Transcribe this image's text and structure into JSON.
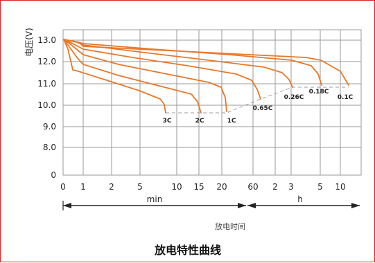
{
  "chart_data": {
    "type": "line",
    "title": "放电特性曲线",
    "ylabel": "电压(V)",
    "xlabel": "放电时间",
    "y_ticks": [
      "0",
      "8.0",
      "9.0",
      "10.0",
      "11.0",
      "12.0",
      "13.0"
    ],
    "x_ticks": [
      "0",
      "1",
      "2",
      "5",
      "10",
      "15",
      "20",
      "60",
      "2",
      "3",
      "5",
      "10"
    ],
    "x_units": [
      {
        "name": "min",
        "from": "0",
        "to": "60"
      },
      {
        "name": "h",
        "from": "1",
        "to": "10"
      }
    ],
    "grid": true,
    "series": [
      {
        "name": "3C",
        "end_voltage": 9.6
      },
      {
        "name": "2C",
        "end_voltage": 9.6
      },
      {
        "name": "1C",
        "end_voltage": 9.6
      },
      {
        "name": "0.65C",
        "end_voltage": 10.2
      },
      {
        "name": "0.26C",
        "end_voltage": 10.8
      },
      {
        "name": "0.18C",
        "end_voltage": 10.8
      },
      {
        "name": "0.1C",
        "end_voltage": 10.8
      }
    ],
    "colors": {
      "curve": "#e8782a",
      "grid": "#9a9a9a",
      "border": "#e02020"
    }
  }
}
